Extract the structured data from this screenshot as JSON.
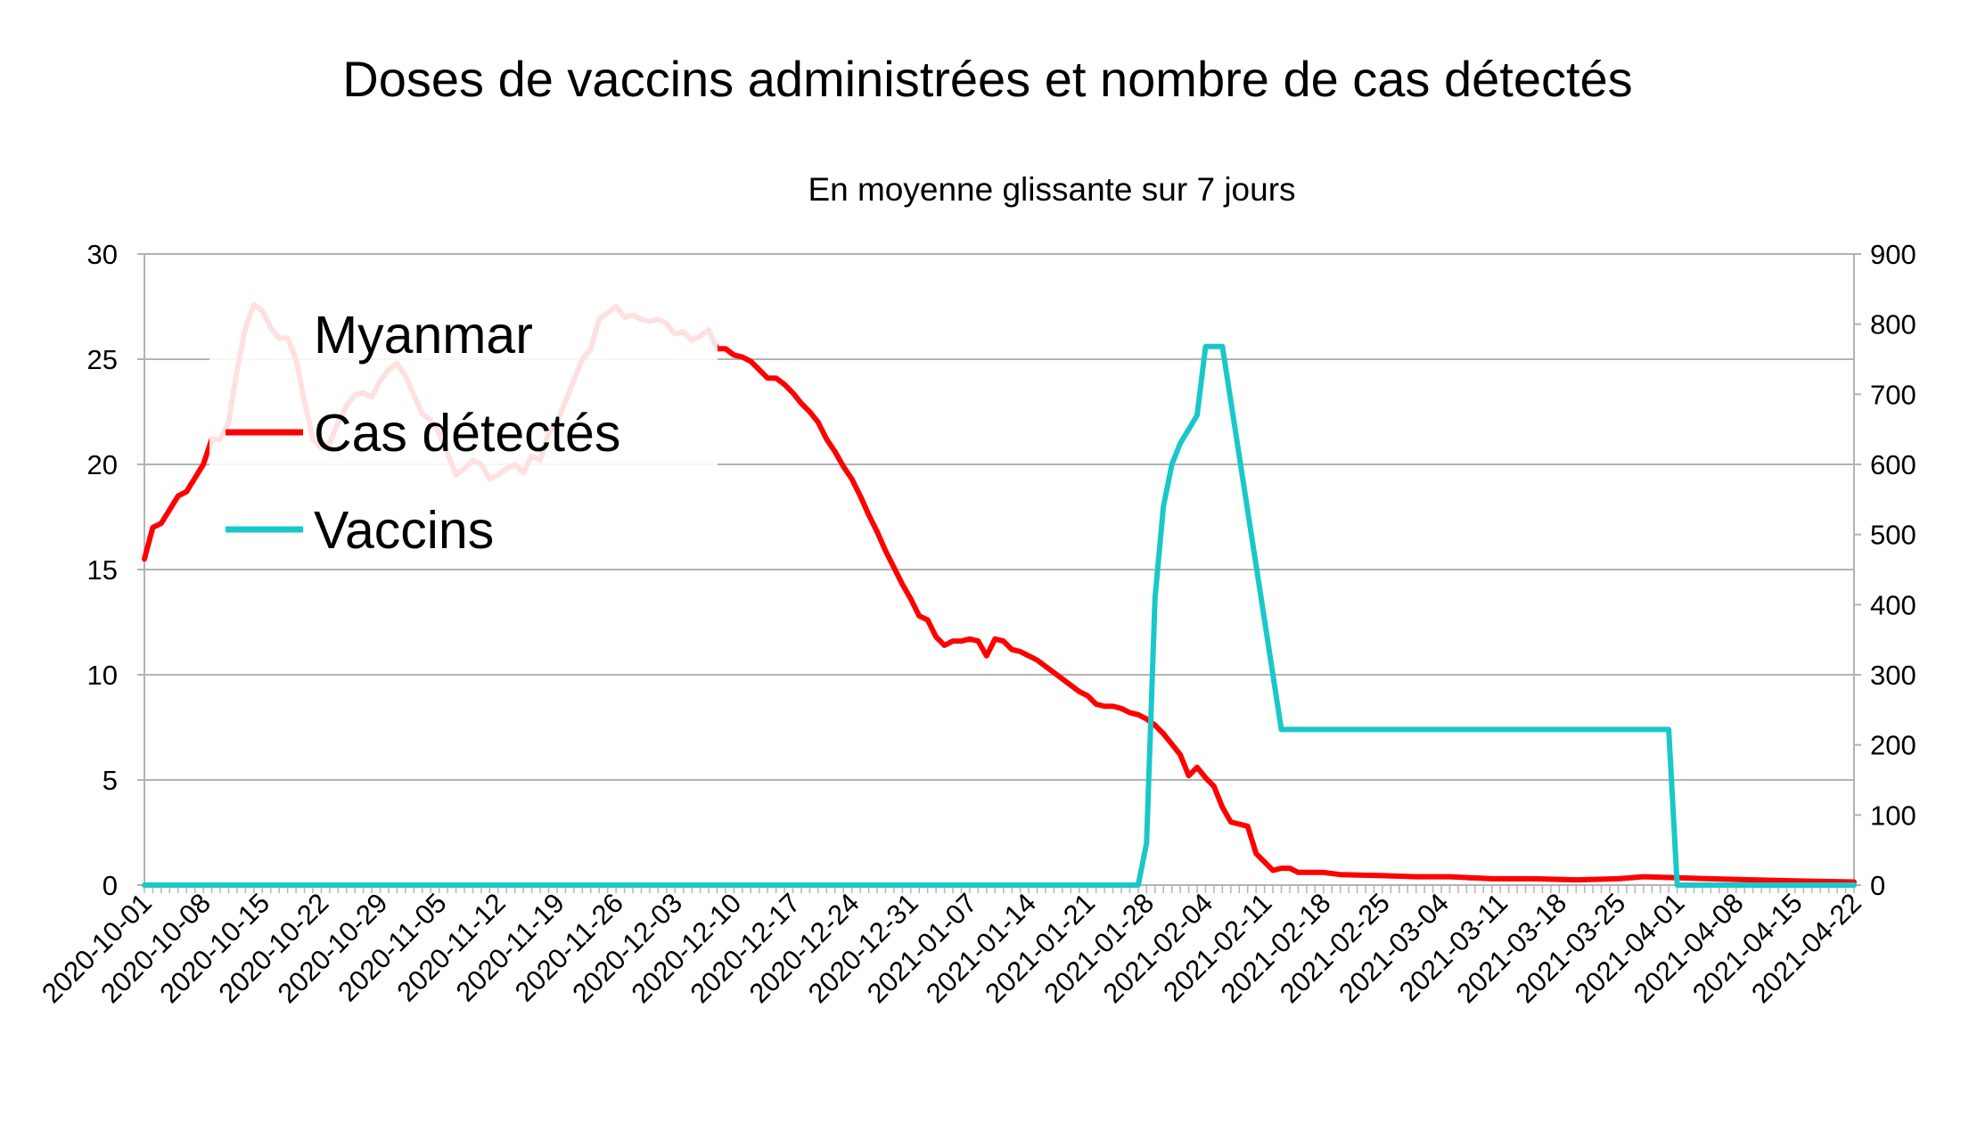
{
  "chart_data": {
    "type": "line",
    "title": "Doses de vaccins administrées et nombre de cas détectés",
    "subtitle": "En moyenne glissante sur 7 jours",
    "legend": {
      "title": "Myanmar",
      "position": "top-left"
    },
    "y_left": {
      "ylim": [
        0,
        30
      ],
      "ticks": [
        0,
        5,
        10,
        15,
        20,
        25,
        30
      ]
    },
    "y_right": {
      "ylim": [
        0,
        900
      ],
      "ticks": [
        0,
        100,
        200,
        300,
        400,
        500,
        600,
        700,
        800,
        900
      ]
    },
    "x_tick_labels": [
      "2020-10-01",
      "2020-10-08",
      "2020-10-15",
      "2020-10-22",
      "2020-10-29",
      "2020-11-05",
      "2020-11-12",
      "2020-11-19",
      "2020-11-26",
      "2020-12-03",
      "2020-12-10",
      "2020-12-17",
      "2020-12-24",
      "2020-12-31",
      "2021-01-07",
      "2021-01-14",
      "2021-01-21",
      "2021-01-28",
      "2021-02-04",
      "2021-02-11",
      "2021-02-18",
      "2021-02-25",
      "2021-03-04",
      "2021-03-11",
      "2021-03-18",
      "2021-03-25",
      "2021-04-01",
      "2021-04-08",
      "2021-04-15",
      "2021-04-22"
    ],
    "grid": "horizontal",
    "series": [
      {
        "name": "Cas détectés",
        "axis": "left",
        "color": "#ff0000",
        "points": [
          [
            "2020-10-01",
            15.5
          ],
          [
            "2020-10-02",
            17
          ],
          [
            "2020-10-03",
            17.2
          ],
          [
            "2020-10-05",
            18.5
          ],
          [
            "2020-10-06",
            18.7
          ],
          [
            "2020-10-08",
            20
          ],
          [
            "2020-10-09",
            21.2
          ],
          [
            "2020-10-10",
            21.2
          ],
          [
            "2020-10-11",
            22
          ],
          [
            "2020-10-12",
            24.5
          ],
          [
            "2020-10-13",
            26.5
          ],
          [
            "2020-10-14",
            27.6
          ],
          [
            "2020-10-15",
            27.3
          ],
          [
            "2020-10-16",
            26.5
          ],
          [
            "2020-10-17",
            26
          ],
          [
            "2020-10-18",
            26
          ],
          [
            "2020-10-19",
            25
          ],
          [
            "2020-10-20",
            23
          ],
          [
            "2020-10-21",
            21.2
          ],
          [
            "2020-10-22",
            20.8
          ],
          [
            "2020-10-23",
            21
          ],
          [
            "2020-10-24",
            22
          ],
          [
            "2020-10-25",
            22.8
          ],
          [
            "2020-10-26",
            23.3
          ],
          [
            "2020-10-27",
            23.4
          ],
          [
            "2020-10-28",
            23.2
          ],
          [
            "2020-10-29",
            24
          ],
          [
            "2020-10-30",
            24.5
          ],
          [
            "2020-10-31",
            24.8
          ],
          [
            "2020-11-01",
            24.2
          ],
          [
            "2020-11-02",
            23.3
          ],
          [
            "2020-11-03",
            22.4
          ],
          [
            "2020-11-04",
            22.1
          ],
          [
            "2020-11-05",
            21.5
          ],
          [
            "2020-11-06",
            20.5
          ],
          [
            "2020-11-07",
            19.5
          ],
          [
            "2020-11-08",
            19.8
          ],
          [
            "2020-11-09",
            20.2
          ],
          [
            "2020-11-10",
            20
          ],
          [
            "2020-11-11",
            19.3
          ],
          [
            "2020-11-12",
            19.5
          ],
          [
            "2020-11-13",
            19.8
          ],
          [
            "2020-11-14",
            20
          ],
          [
            "2020-11-15",
            19.6
          ],
          [
            "2020-11-16",
            20.4
          ],
          [
            "2020-11-17",
            20.2
          ],
          [
            "2020-11-18",
            21.5
          ],
          [
            "2020-11-19",
            22
          ],
          [
            "2020-11-20",
            23
          ],
          [
            "2020-11-21",
            24
          ],
          [
            "2020-11-22",
            25
          ],
          [
            "2020-11-23",
            25.5
          ],
          [
            "2020-11-24",
            26.9
          ],
          [
            "2020-11-25",
            27.2
          ],
          [
            "2020-11-26",
            27.5
          ],
          [
            "2020-11-27",
            27
          ],
          [
            "2020-11-28",
            27.1
          ],
          [
            "2020-11-29",
            26.9
          ],
          [
            "2020-11-30",
            26.8
          ],
          [
            "2020-12-01",
            26.9
          ],
          [
            "2020-12-02",
            26.7
          ],
          [
            "2020-12-03",
            26.2
          ],
          [
            "2020-12-04",
            26.3
          ],
          [
            "2020-12-05",
            25.9
          ],
          [
            "2020-12-06",
            26.1
          ],
          [
            "2020-12-07",
            26.4
          ],
          [
            "2020-12-08",
            25.5
          ],
          [
            "2020-12-09",
            25.5
          ],
          [
            "2020-12-10",
            25.2
          ],
          [
            "2020-12-11",
            25.1
          ],
          [
            "2020-12-12",
            24.9
          ],
          [
            "2020-12-13",
            24.5
          ],
          [
            "2020-12-14",
            24.1
          ],
          [
            "2020-12-15",
            24.1
          ],
          [
            "2020-12-16",
            23.8
          ],
          [
            "2020-12-17",
            23.4
          ],
          [
            "2020-12-18",
            22.9
          ],
          [
            "2020-12-19",
            22.5
          ],
          [
            "2020-12-20",
            22
          ],
          [
            "2020-12-21",
            21.2
          ],
          [
            "2020-12-22",
            20.6
          ],
          [
            "2020-12-23",
            19.9
          ],
          [
            "2020-12-24",
            19.3
          ],
          [
            "2020-12-25",
            18.5
          ],
          [
            "2020-12-26",
            17.6
          ],
          [
            "2020-12-27",
            16.8
          ],
          [
            "2020-12-28",
            15.9
          ],
          [
            "2020-12-29",
            15.1
          ],
          [
            "2020-12-30",
            14.3
          ],
          [
            "2020-12-31",
            13.6
          ],
          [
            "2021-01-01",
            12.8
          ],
          [
            "2021-01-02",
            12.6
          ],
          [
            "2021-01-03",
            11.8
          ],
          [
            "2021-01-04",
            11.4
          ],
          [
            "2021-01-05",
            11.6
          ],
          [
            "2021-01-06",
            11.6
          ],
          [
            "2021-01-07",
            11.7
          ],
          [
            "2021-01-08",
            11.6
          ],
          [
            "2021-01-09",
            10.9
          ],
          [
            "2021-01-10",
            11.7
          ],
          [
            "2021-01-11",
            11.6
          ],
          [
            "2021-01-12",
            11.2
          ],
          [
            "2021-01-13",
            11.1
          ],
          [
            "2021-01-14",
            10.9
          ],
          [
            "2021-01-15",
            10.7
          ],
          [
            "2021-01-16",
            10.4
          ],
          [
            "2021-01-17",
            10.1
          ],
          [
            "2021-01-18",
            9.8
          ],
          [
            "2021-01-19",
            9.5
          ],
          [
            "2021-01-20",
            9.2
          ],
          [
            "2021-01-21",
            9
          ],
          [
            "2021-01-22",
            8.6
          ],
          [
            "2021-01-23",
            8.5
          ],
          [
            "2021-01-24",
            8.5
          ],
          [
            "2021-01-25",
            8.4
          ],
          [
            "2021-01-26",
            8.2
          ],
          [
            "2021-01-27",
            8.1
          ],
          [
            "2021-01-28",
            7.9
          ],
          [
            "2021-01-29",
            7.6
          ],
          [
            "2021-01-30",
            7.2
          ],
          [
            "2021-01-31",
            6.7
          ],
          [
            "2021-02-01",
            6.2
          ],
          [
            "2021-02-02",
            5.2
          ],
          [
            "2021-02-03",
            5.6
          ],
          [
            "2021-02-04",
            5.1
          ],
          [
            "2021-02-05",
            4.7
          ],
          [
            "2021-02-06",
            3.7
          ],
          [
            "2021-02-07",
            3.0
          ],
          [
            "2021-02-08",
            2.9
          ],
          [
            "2021-02-09",
            2.8
          ],
          [
            "2021-02-10",
            1.5
          ],
          [
            "2021-02-11",
            1.1
          ],
          [
            "2021-02-12",
            0.7
          ],
          [
            "2021-02-13",
            0.8
          ],
          [
            "2021-02-14",
            0.8
          ],
          [
            "2021-02-15",
            0.6
          ],
          [
            "2021-02-16",
            0.6
          ],
          [
            "2021-02-18",
            0.6
          ],
          [
            "2021-02-20",
            0.5
          ],
          [
            "2021-02-25",
            0.45
          ],
          [
            "2021-03-01",
            0.4
          ],
          [
            "2021-03-05",
            0.4
          ],
          [
            "2021-03-10",
            0.3
          ],
          [
            "2021-03-15",
            0.3
          ],
          [
            "2021-03-20",
            0.25
          ],
          [
            "2021-03-25",
            0.3
          ],
          [
            "2021-03-28",
            0.4
          ],
          [
            "2021-04-01",
            0.35
          ],
          [
            "2021-04-05",
            0.3
          ],
          [
            "2021-04-10",
            0.25
          ],
          [
            "2021-04-15",
            0.2
          ],
          [
            "2021-04-22",
            0.15
          ]
        ]
      },
      {
        "name": "Vaccins",
        "axis": "right",
        "color": "#19c8c8",
        "points": [
          [
            "2020-10-01",
            0
          ],
          [
            "2021-01-27",
            0
          ],
          [
            "2021-01-28",
            60
          ],
          [
            "2021-01-29",
            410
          ],
          [
            "2021-01-30",
            540
          ],
          [
            "2021-01-31",
            600
          ],
          [
            "2021-02-01",
            630
          ],
          [
            "2021-02-02",
            650
          ],
          [
            "2021-02-03",
            670
          ],
          [
            "2021-02-04",
            768
          ],
          [
            "2021-02-05",
            768
          ],
          [
            "2021-02-06",
            768
          ],
          [
            "2021-02-13",
            222
          ],
          [
            "2021-03-31",
            222
          ],
          [
            "2021-04-01",
            0
          ],
          [
            "2021-04-22",
            0
          ]
        ]
      }
    ]
  }
}
